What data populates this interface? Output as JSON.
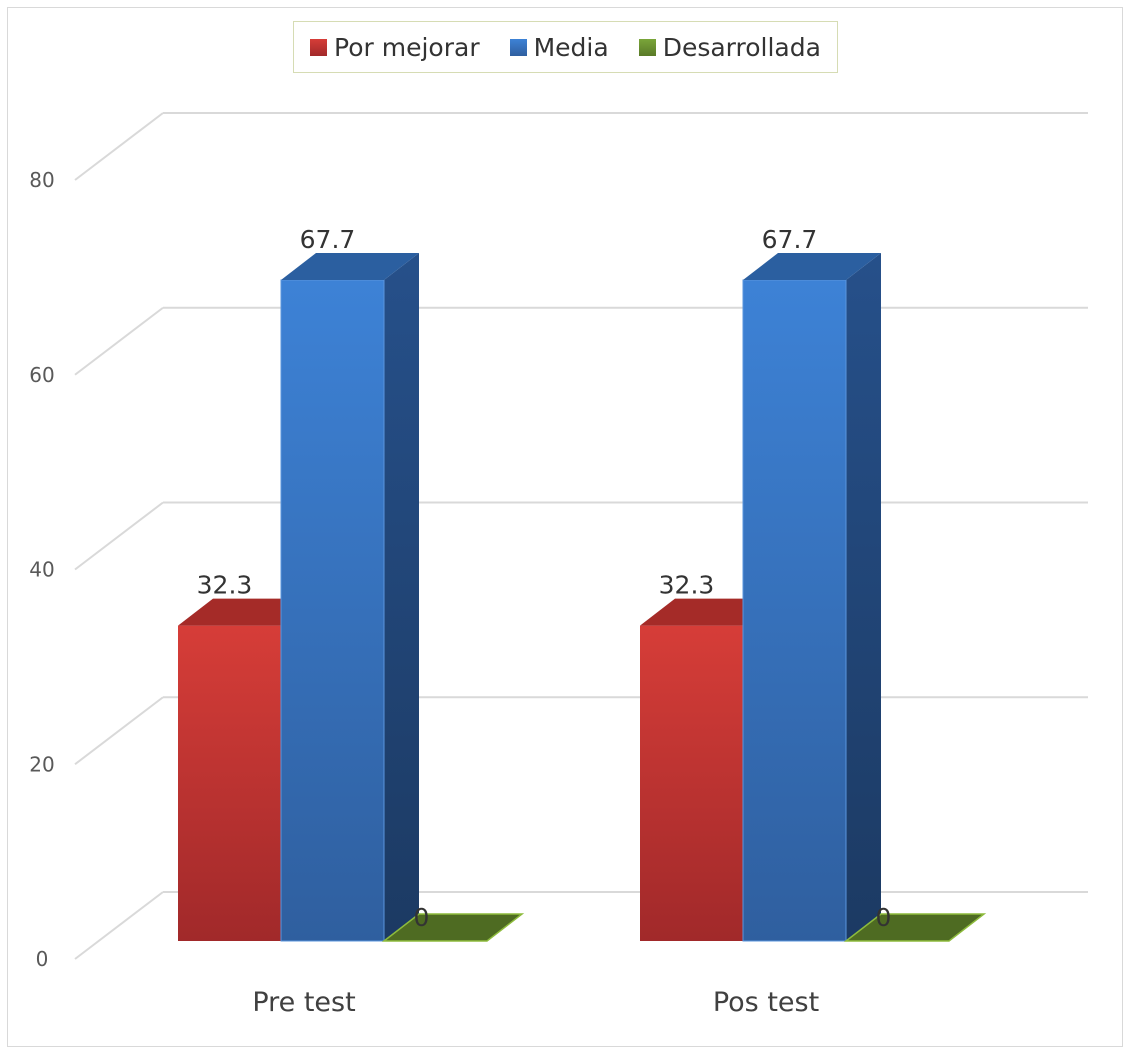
{
  "chart_data": {
    "type": "bar",
    "categories": [
      "Pre test",
      "Pos test"
    ],
    "series": [
      {
        "name": "Por mejorar",
        "values": [
          32.3,
          32.3
        ],
        "color": "#c0392b"
      },
      {
        "name": "Media",
        "values": [
          67.7,
          67.7
        ],
        "color": "#3a78c9"
      },
      {
        "name": "Desarrollada",
        "values": [
          0,
          0
        ],
        "color": "#5a7a28"
      }
    ],
    "data_labels": [
      [
        "32.3",
        "67.7",
        "0"
      ],
      [
        "32.3",
        "67.7",
        "0"
      ]
    ],
    "yticks": [
      "0",
      "20",
      "40",
      "60",
      "80"
    ],
    "ylim": [
      0,
      80
    ],
    "grid": true,
    "legend_position": "top-center",
    "three_d": true
  }
}
